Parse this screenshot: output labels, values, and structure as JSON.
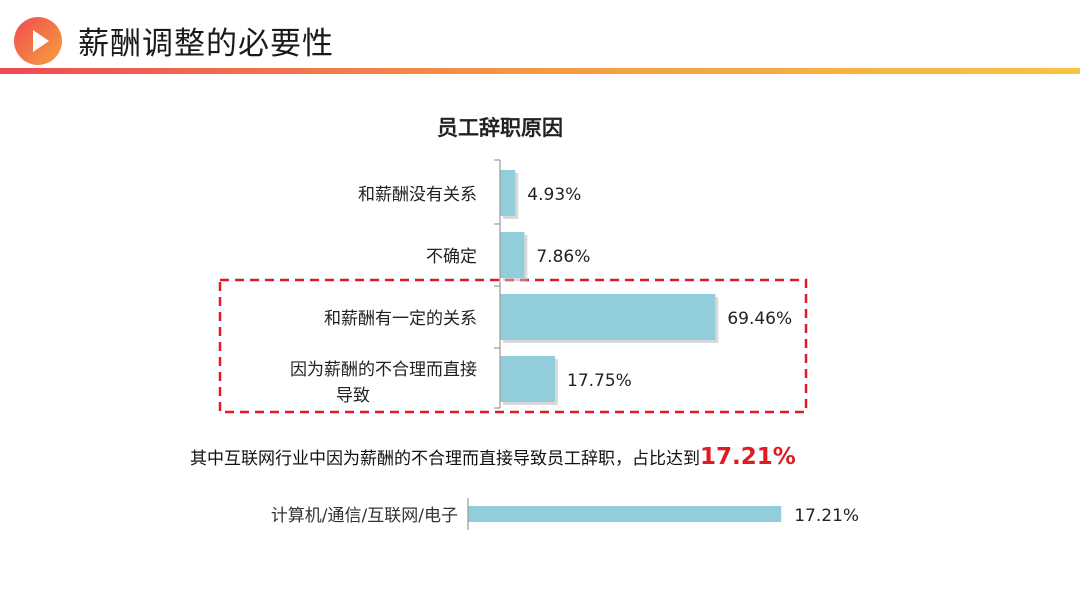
{
  "header": {
    "title": "薪酬调整的必要性",
    "icon": "play-icon"
  },
  "chart_data": [
    {
      "type": "bar",
      "orientation": "horizontal",
      "title": "员工辞职原因",
      "categories": [
        "和薪酬没有关系",
        "不确定",
        "和薪酬有一定的关系",
        "因为薪酬的不合理而直接导致"
      ],
      "values": [
        4.93,
        7.86,
        69.46,
        17.75
      ],
      "data_labels": [
        "4.93%",
        "7.86%",
        "69.46%",
        "17.75%"
      ],
      "xlim": [
        0,
        100
      ],
      "bar_color": "#92cddc",
      "highlight": {
        "categories": [
          "和薪酬有一定的关系",
          "因为薪酬的不合理而直接导致"
        ],
        "style": "dashed-box",
        "color": "#e01b22"
      }
    },
    {
      "type": "bar",
      "orientation": "horizontal",
      "categories": [
        "计算机/通信/互联网/电子"
      ],
      "values": [
        17.21
      ],
      "data_labels": [
        "17.21%"
      ],
      "bar_color": "#92cddc"
    }
  ],
  "caption": {
    "text": "其中互联网行业中因为薪酬的不合理而直接导致员工辞职，占比达到",
    "highlight": "17.21%",
    "highlight_color": "#e01b22"
  }
}
